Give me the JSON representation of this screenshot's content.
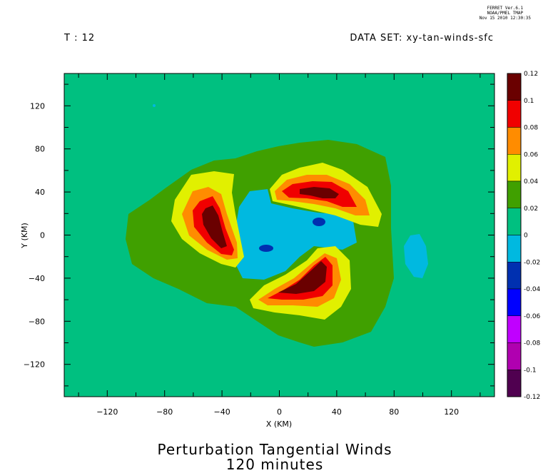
{
  "header": {
    "stamp_line1": "FERRET Ver.6.1",
    "stamp_line2": "NOAA/PMEL TMAP",
    "stamp_line3": "Nov 15 2010 12:30:35",
    "time_label": "T : 12",
    "dataset_label": "DATA SET: xy-tan-winds-sfc"
  },
  "chart_data": {
    "type": "heatmap",
    "title": "Perturbation Tangential Winds",
    "subtitle": "120 minutes",
    "xlabel": "X (KM)",
    "ylabel": "Y (KM)",
    "xlim": [
      -150,
      150
    ],
    "ylim": [
      -150,
      150
    ],
    "x_ticks": [
      -120,
      -80,
      -40,
      0,
      40,
      80,
      120
    ],
    "y_ticks": [
      120,
      80,
      40,
      0,
      -40,
      -80,
      -120
    ],
    "colorbar": {
      "levels": [
        0.12,
        0.1,
        0.08,
        0.06,
        0.04,
        0.02,
        0,
        -0.02,
        -0.04,
        -0.06,
        -0.08,
        -0.1,
        -0.12
      ],
      "level_labels": [
        "0.12",
        "0.1",
        "0.08",
        "0.06",
        "0.04",
        "0.02",
        "0",
        "-0.02",
        "-0.04",
        "-0.06",
        "-0.08",
        "-0.1",
        "-0.12"
      ],
      "colors": [
        "#6a0000",
        "#f00000",
        "#ff8c00",
        "#e1f000",
        "#40a000",
        "#00c080",
        "#00b9e0",
        "#0030b0",
        "#0000ff",
        "#c000ff",
        "#b000b0",
        "#500050"
      ]
    },
    "background_color": "#00c080",
    "features": [
      {
        "name": "ring",
        "value_range": [
          0.02,
          0.04
        ],
        "color": "#40a000"
      },
      {
        "name": "lobe-left",
        "value_range": [
          0.04,
          0.12
        ],
        "peak_x": -50,
        "peak_y": 10
      },
      {
        "name": "lobe-top",
        "value_range": [
          0.04,
          0.12
        ],
        "peak_x": 30,
        "peak_y": 38
      },
      {
        "name": "lobe-bottom",
        "value_range": [
          0.04,
          0.12
        ],
        "peak_x": 20,
        "peak_y": -50
      },
      {
        "name": "center-negative",
        "value_range": [
          -0.02,
          0
        ],
        "color": "#00b9e0"
      },
      {
        "name": "center-negative-core",
        "value_range": [
          -0.04,
          -0.02
        ],
        "color": "#0030b0"
      },
      {
        "name": "east-negative-patch",
        "value_range": [
          -0.02,
          0
        ],
        "center_x": 95,
        "center_y": -18
      }
    ]
  }
}
